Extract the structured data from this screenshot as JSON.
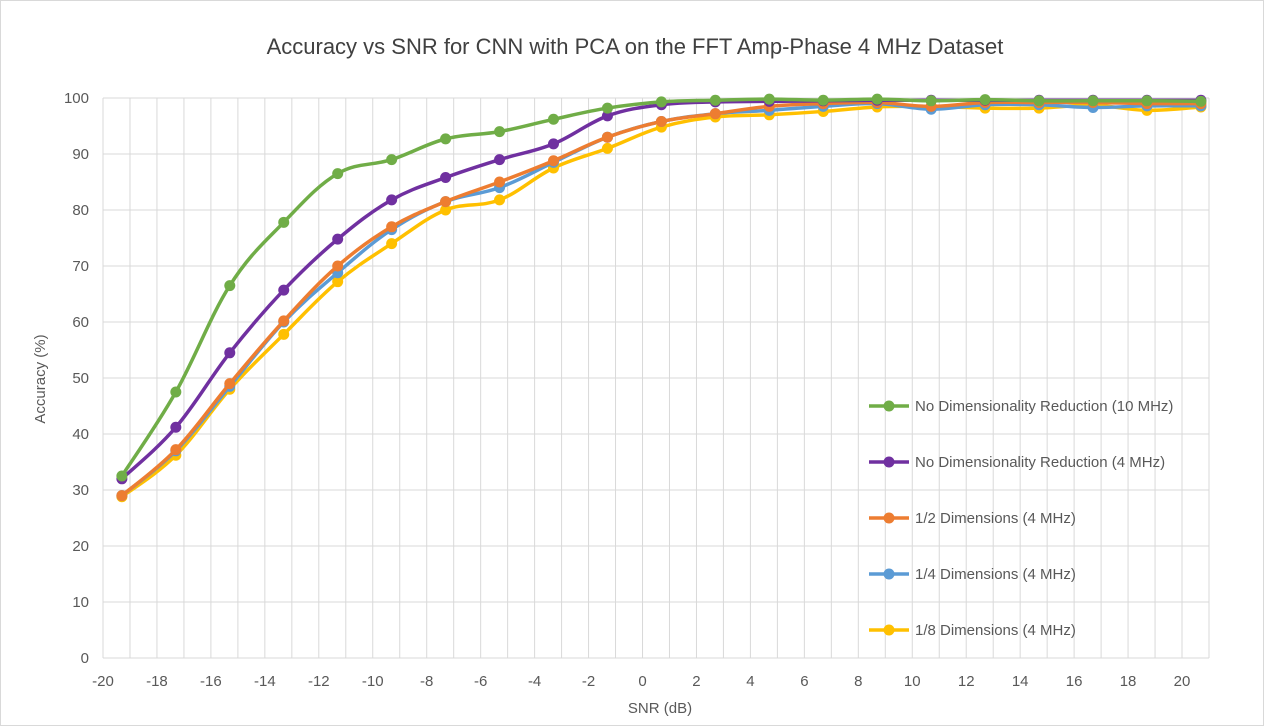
{
  "chart_data": {
    "type": "line",
    "title": "Accuracy vs SNR for CNN with PCA on the FFT Amp-Phase 4 MHz Dataset",
    "xlabel": "SNR (dB)",
    "ylabel": "Accuracy (%)",
    "xlim": [
      -20,
      21
    ],
    "ylim": [
      0,
      100
    ],
    "xticks": [
      -20,
      -18,
      -16,
      -14,
      -12,
      -10,
      -8,
      -6,
      -4,
      -2,
      0,
      2,
      4,
      6,
      8,
      10,
      12,
      14,
      16,
      18,
      20
    ],
    "yticks": [
      0,
      10,
      20,
      30,
      40,
      50,
      60,
      70,
      80,
      90,
      100
    ],
    "x": [
      -19.3,
      -17.3,
      -15.3,
      -13.3,
      -11.3,
      -9.3,
      -7.3,
      -5.3,
      -3.3,
      -1.3,
      0.7,
      2.7,
      4.7,
      6.7,
      8.7,
      10.7,
      12.7,
      14.7,
      16.7,
      18.7,
      20.7
    ],
    "grid": "vertical and horizontal",
    "legend_position": "right",
    "series": [
      {
        "name": "No Dimensionality Reduction (10 MHz)",
        "color": "#70ad47",
        "values": [
          32.5,
          47.5,
          66.5,
          77.8,
          86.5,
          89,
          92.7,
          94,
          96.2,
          98.2,
          99.3,
          99.6,
          99.8,
          99.6,
          99.8,
          99.5,
          99.7,
          99.5,
          99.5,
          99.5,
          99.4
        ]
      },
      {
        "name": "No Dimensionality Reduction (4 MHz)",
        "color": "#7030a0",
        "values": [
          32,
          41.2,
          54.5,
          65.7,
          74.8,
          81.8,
          85.8,
          89,
          91.8,
          96.8,
          98.8,
          99.3,
          99.4,
          99.5,
          99.6,
          99.6,
          99.6,
          99.6,
          99.6,
          99.6,
          99.6
        ]
      },
      {
        "name": "1/2 Dimensions (4 MHz)",
        "color": "#ed7d31",
        "values": [
          29,
          37.2,
          49,
          60.2,
          70,
          77,
          81.5,
          85,
          88.8,
          93,
          95.8,
          97.2,
          98.5,
          99,
          99.2,
          98.5,
          99.2,
          99.2,
          99.2,
          99,
          99
        ]
      },
      {
        "name": "1/4 Dimensions (4 MHz)",
        "color": "#5b9bd5",
        "values": [
          29,
          37,
          48.5,
          60,
          68.8,
          76.5,
          81.5,
          84,
          88.5,
          93,
          95.8,
          97.2,
          97.8,
          98.5,
          99,
          98,
          98.8,
          98.8,
          98.3,
          98.6,
          98.6
        ]
      },
      {
        "name": "1/8 Dimensions (4 MHz)",
        "color": "#ffc000",
        "values": [
          28.8,
          36.2,
          48,
          57.8,
          67.2,
          74,
          80,
          81.8,
          87.5,
          91,
          94.8,
          96.6,
          97,
          97.6,
          98.4,
          98.5,
          98.2,
          98.2,
          98.7,
          97.8,
          98.4
        ]
      }
    ]
  }
}
